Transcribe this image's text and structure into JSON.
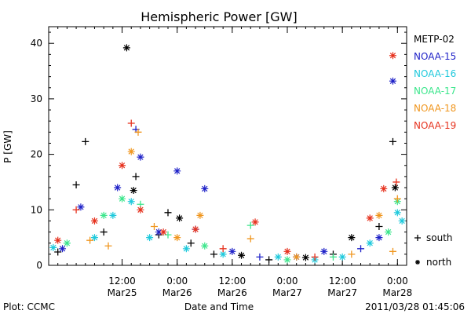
{
  "chart_data": {
    "type": "scatter",
    "title": "Hemispheric Power [GW]",
    "xlabel": "Date and Time",
    "ylabel": "P [GW]",
    "ylim": [
      0,
      43
    ],
    "xlim": [
      "2011-03-24 20:00",
      "2011-03-28 02:00"
    ],
    "yticks": [
      0,
      10,
      20,
      30,
      40
    ],
    "xticks": [
      {
        "at": "2011-03-25 12:00",
        "time": "12:00",
        "date": "Mar25"
      },
      {
        "at": "2011-03-26 00:00",
        "time": "0:00",
        "date": "Mar26"
      },
      {
        "at": "2011-03-26 12:00",
        "time": "12:00",
        "date": "Mar26"
      },
      {
        "at": "2011-03-27 00:00",
        "time": "0:00",
        "date": "Mar27"
      },
      {
        "at": "2011-03-27 12:00",
        "time": "12:00",
        "date": "Mar27"
      },
      {
        "at": "2011-03-28 00:00",
        "time": "0:00",
        "date": "Mar28"
      }
    ],
    "legend": {
      "placement": "right",
      "entries": [
        "METP-02",
        "NOAA-15",
        "NOAA-16",
        "NOAA-17",
        "NOAA-18",
        "NOAA-19"
      ]
    },
    "marker_legend": [
      {
        "symbol": "+",
        "label": "south"
      },
      {
        "symbol": "*",
        "label": "north"
      }
    ],
    "series": [
      {
        "name": "METP-02",
        "color": "#000000",
        "points": [
          {
            "t": "2011-03-24 22:00",
            "v": 2.4,
            "m": "+"
          },
          {
            "t": "2011-03-25 02:00",
            "v": 14.5,
            "m": "+"
          },
          {
            "t": "2011-03-25 04:00",
            "v": 22.3,
            "m": "+"
          },
          {
            "t": "2011-03-25 08:00",
            "v": 6.0,
            "m": "+"
          },
          {
            "t": "2011-03-25 13:00",
            "v": 39.2,
            "m": "*"
          },
          {
            "t": "2011-03-25 14:30",
            "v": 13.5,
            "m": "*"
          },
          {
            "t": "2011-03-25 15:00",
            "v": 16.0,
            "m": "+"
          },
          {
            "t": "2011-03-25 20:00",
            "v": 5.5,
            "m": "+"
          },
          {
            "t": "2011-03-25 22:00",
            "v": 9.5,
            "m": "+"
          },
          {
            "t": "2011-03-26 00:30",
            "v": 8.5,
            "m": "*"
          },
          {
            "t": "2011-03-26 03:00",
            "v": 4.0,
            "m": "+"
          },
          {
            "t": "2011-03-26 08:00",
            "v": 2.0,
            "m": "+"
          },
          {
            "t": "2011-03-26 14:00",
            "v": 1.8,
            "m": "*"
          },
          {
            "t": "2011-03-26 20:00",
            "v": 1.0,
            "m": "+"
          },
          {
            "t": "2011-03-27 04:00",
            "v": 1.4,
            "m": "*"
          },
          {
            "t": "2011-03-27 10:00",
            "v": 2.0,
            "m": "+"
          },
          {
            "t": "2011-03-27 14:00",
            "v": 5.0,
            "m": "*"
          },
          {
            "t": "2011-03-27 20:00",
            "v": 7.0,
            "m": "+"
          },
          {
            "t": "2011-03-27 23:00",
            "v": 22.3,
            "m": "+"
          },
          {
            "t": "2011-03-27 23:30",
            "v": 14.0,
            "m": "*"
          }
        ]
      },
      {
        "name": "NOAA-15",
        "color": "#1f22c8",
        "points": [
          {
            "t": "2011-03-24 23:00",
            "v": 3.0,
            "m": "*"
          },
          {
            "t": "2011-03-25 03:00",
            "v": 10.5,
            "m": "*"
          },
          {
            "t": "2011-03-25 11:00",
            "v": 14.0,
            "m": "*"
          },
          {
            "t": "2011-03-25 15:00",
            "v": 24.5,
            "m": "+"
          },
          {
            "t": "2011-03-25 16:00",
            "v": 19.5,
            "m": "*"
          },
          {
            "t": "2011-03-25 20:00",
            "v": 6.0,
            "m": "*"
          },
          {
            "t": "2011-03-26 00:00",
            "v": 17.0,
            "m": "*"
          },
          {
            "t": "2011-03-26 04:00",
            "v": 6.5,
            "m": "+"
          },
          {
            "t": "2011-03-26 06:00",
            "v": 13.8,
            "m": "*"
          },
          {
            "t": "2011-03-26 12:00",
            "v": 2.5,
            "m": "*"
          },
          {
            "t": "2011-03-26 18:00",
            "v": 1.5,
            "m": "+"
          },
          {
            "t": "2011-03-27 02:00",
            "v": 1.5,
            "m": "*"
          },
          {
            "t": "2011-03-27 08:00",
            "v": 2.5,
            "m": "*"
          },
          {
            "t": "2011-03-27 16:00",
            "v": 3.0,
            "m": "+"
          },
          {
            "t": "2011-03-27 20:00",
            "v": 5.0,
            "m": "*"
          },
          {
            "t": "2011-03-27 23:00",
            "v": 33.2,
            "m": "*"
          }
        ]
      },
      {
        "name": "NOAA-16",
        "color": "#1fc9dc",
        "points": [
          {
            "t": "2011-03-24 21:00",
            "v": 3.2,
            "m": "*"
          },
          {
            "t": "2011-03-25 06:00",
            "v": 5.0,
            "m": "*"
          },
          {
            "t": "2011-03-25 10:00",
            "v": 9.0,
            "m": "*"
          },
          {
            "t": "2011-03-25 14:00",
            "v": 11.5,
            "m": "*"
          },
          {
            "t": "2011-03-25 18:00",
            "v": 5.0,
            "m": "*"
          },
          {
            "t": "2011-03-26 02:00",
            "v": 3.0,
            "m": "*"
          },
          {
            "t": "2011-03-26 10:00",
            "v": 2.0,
            "m": "*"
          },
          {
            "t": "2011-03-26 22:00",
            "v": 1.5,
            "m": "*"
          },
          {
            "t": "2011-03-27 06:00",
            "v": 1.0,
            "m": "*"
          },
          {
            "t": "2011-03-27 12:00",
            "v": 1.5,
            "m": "*"
          },
          {
            "t": "2011-03-27 18:00",
            "v": 4.0,
            "m": "*"
          },
          {
            "t": "2011-03-28 00:00",
            "v": 9.5,
            "m": "*"
          },
          {
            "t": "2011-03-28 01:00",
            "v": 8.0,
            "m": "*"
          }
        ]
      },
      {
        "name": "NOAA-17",
        "color": "#3ce68c",
        "points": [
          {
            "t": "2011-03-25 00:00",
            "v": 4.0,
            "m": "*"
          },
          {
            "t": "2011-03-25 08:00",
            "v": 9.0,
            "m": "*"
          },
          {
            "t": "2011-03-25 12:00",
            "v": 12.0,
            "m": "*"
          },
          {
            "t": "2011-03-25 16:00",
            "v": 11.0,
            "m": "+"
          },
          {
            "t": "2011-03-25 22:00",
            "v": 5.5,
            "m": "+"
          },
          {
            "t": "2011-03-26 06:00",
            "v": 3.5,
            "m": "*"
          },
          {
            "t": "2011-03-26 16:00",
            "v": 7.2,
            "m": "+"
          },
          {
            "t": "2011-03-27 00:00",
            "v": 1.0,
            "m": "*"
          },
          {
            "t": "2011-03-27 10:00",
            "v": 1.5,
            "m": "+"
          },
          {
            "t": "2011-03-27 22:00",
            "v": 6.0,
            "m": "*"
          },
          {
            "t": "2011-03-28 00:00",
            "v": 11.5,
            "m": "*"
          }
        ]
      },
      {
        "name": "NOAA-18",
        "color": "#f0961e",
        "points": [
          {
            "t": "2011-03-25 05:00",
            "v": 4.5,
            "m": "+"
          },
          {
            "t": "2011-03-25 09:00",
            "v": 3.5,
            "m": "+"
          },
          {
            "t": "2011-03-25 14:00",
            "v": 20.5,
            "m": "*"
          },
          {
            "t": "2011-03-25 15:30",
            "v": 24.0,
            "m": "+"
          },
          {
            "t": "2011-03-25 19:00",
            "v": 7.0,
            "m": "+"
          },
          {
            "t": "2011-03-26 00:00",
            "v": 5.0,
            "m": "*"
          },
          {
            "t": "2011-03-26 05:00",
            "v": 9.0,
            "m": "*"
          },
          {
            "t": "2011-03-26 16:00",
            "v": 4.8,
            "m": "+"
          },
          {
            "t": "2011-03-27 02:00",
            "v": 1.5,
            "m": "*"
          },
          {
            "t": "2011-03-27 14:00",
            "v": 2.0,
            "m": "+"
          },
          {
            "t": "2011-03-27 20:00",
            "v": 9.0,
            "m": "*"
          },
          {
            "t": "2011-03-27 23:00",
            "v": 2.5,
            "m": "+"
          },
          {
            "t": "2011-03-28 00:00",
            "v": 12.0,
            "m": "+"
          }
        ]
      },
      {
        "name": "NOAA-19",
        "color": "#e6321e",
        "points": [
          {
            "t": "2011-03-24 22:00",
            "v": 4.5,
            "m": "*"
          },
          {
            "t": "2011-03-25 02:00",
            "v": 10.0,
            "m": "+"
          },
          {
            "t": "2011-03-25 06:00",
            "v": 8.0,
            "m": "*"
          },
          {
            "t": "2011-03-25 12:00",
            "v": 18.0,
            "m": "*"
          },
          {
            "t": "2011-03-25 14:00",
            "v": 25.6,
            "m": "+"
          },
          {
            "t": "2011-03-25 16:00",
            "v": 10.0,
            "m": "*"
          },
          {
            "t": "2011-03-25 21:00",
            "v": 6.0,
            "m": "*"
          },
          {
            "t": "2011-03-26 04:00",
            "v": 6.5,
            "m": "*"
          },
          {
            "t": "2011-03-26 10:00",
            "v": 3.0,
            "m": "+"
          },
          {
            "t": "2011-03-26 17:00",
            "v": 7.8,
            "m": "*"
          },
          {
            "t": "2011-03-27 00:00",
            "v": 2.5,
            "m": "*"
          },
          {
            "t": "2011-03-27 06:00",
            "v": 1.5,
            "m": "+"
          },
          {
            "t": "2011-03-27 18:00",
            "v": 8.5,
            "m": "*"
          },
          {
            "t": "2011-03-27 21:00",
            "v": 13.8,
            "m": "*"
          },
          {
            "t": "2011-03-27 23:00",
            "v": 37.8,
            "m": "*"
          },
          {
            "t": "2011-03-27 23:45",
            "v": 15.0,
            "m": "+"
          }
        ]
      }
    ]
  },
  "footer": {
    "plot_credit": "Plot: CCMC",
    "timestamp": "2011/03/28 01:45:06"
  }
}
